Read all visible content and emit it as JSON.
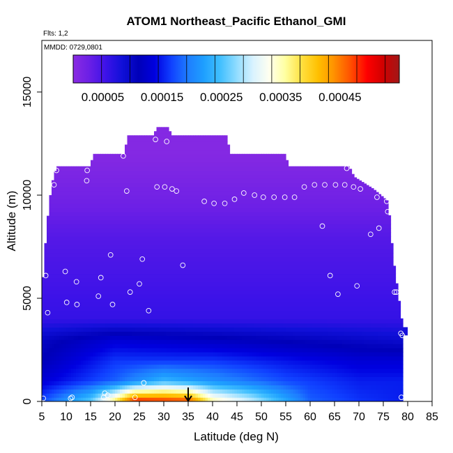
{
  "chart_data": {
    "type": "heatmap",
    "title": "ATOM1 Northeast_Pacific Ethanol_GMI",
    "flights_note": "Flts: 1,2",
    "date_note": "MMDD: 0729,0801",
    "xlabel": "Latitude (deg N)",
    "ylabel": "Altitude (m)",
    "xlim": [
      5,
      85
    ],
    "ylim": [
      0,
      17500
    ],
    "x_ticks": [
      "5",
      "10",
      "15",
      "20",
      "25",
      "30",
      "35",
      "40",
      "45",
      "50",
      "55",
      "60",
      "65",
      "70",
      "75",
      "80",
      "85"
    ],
    "y_ticks": [
      "0",
      "5000",
      "10000",
      "15000"
    ],
    "colorbar": {
      "min": 0,
      "max": 0.00055,
      "tick_labels": [
        "0.00005",
        "0.00015",
        "0.00025",
        "0.00035",
        "0.00045"
      ],
      "colors": [
        "#8a2be2",
        "#6a1fe6",
        "#3c12e8",
        "#1010d8",
        "#0000b8",
        "#0000e0",
        "#1040ff",
        "#1e7cff",
        "#1e9fff",
        "#40bfff",
        "#8fdcff",
        "#d8f2ff",
        "#fffff0",
        "#ffffa0",
        "#ffe040",
        "#ffc000",
        "#ff9000",
        "#ff5000",
        "#ff0000",
        "#d00000",
        "#a01818"
      ]
    },
    "field_rows": [
      {
        "alt": 0,
        "values_by_latitude": [
          [
            5,
            0.00017
          ],
          [
            15,
            0.00026
          ],
          [
            20,
            0.00038
          ],
          [
            24,
            0.0005
          ],
          [
            35,
            0.00048
          ],
          [
            40,
            0.00036
          ],
          [
            48,
            0.0003
          ],
          [
            60,
            0.00018
          ],
          [
            70,
            0.00016
          ],
          [
            79,
            0.00015
          ]
        ]
      },
      {
        "alt": 1000,
        "values_by_latitude": [
          [
            5,
            0.00013
          ],
          [
            20,
            0.00018
          ],
          [
            30,
            0.00024
          ],
          [
            40,
            0.00021
          ],
          [
            55,
            0.00017
          ],
          [
            70,
            0.00015
          ]
        ]
      },
      {
        "alt": 2000,
        "values_by_latitude": [
          [
            5,
            0.00011
          ],
          [
            20,
            0.00016
          ],
          [
            40,
            0.00016
          ],
          [
            70,
            0.00013
          ]
        ]
      },
      {
        "alt": 3000,
        "values_by_latitude": [
          [
            5,
            0.0001
          ],
          [
            20,
            0.00013
          ],
          [
            50,
            0.00011
          ],
          [
            79,
            9e-05
          ]
        ]
      },
      {
        "alt": 4000,
        "values_by_latitude": [
          [
            5,
            6e-05
          ],
          [
            40,
            6e-05
          ],
          [
            79,
            6e-05
          ]
        ]
      },
      {
        "alt": 6000,
        "values_by_latitude": [
          [
            5,
            5e-05
          ],
          [
            79,
            5e-05
          ]
        ]
      },
      {
        "alt": 8000,
        "values_by_latitude": [
          [
            5,
            4e-05
          ],
          [
            79,
            4e-05
          ]
        ]
      },
      {
        "alt": 10000,
        "values_by_latitude": [
          [
            5,
            2e-05
          ],
          [
            79,
            2e-05
          ]
        ]
      },
      {
        "alt": 12000,
        "values_by_latitude": [
          [
            5,
            5e-06
          ],
          [
            79,
            5e-06
          ]
        ]
      }
    ],
    "field_extent": [
      {
        "lat": 5,
        "top": 5200
      },
      {
        "lat": 6,
        "top": 8500
      },
      {
        "lat": 7,
        "top": 10500
      },
      {
        "lat": 8,
        "top": 11400
      },
      {
        "lat": 15,
        "top": 11400
      },
      {
        "lat": 15.5,
        "top": 12000
      },
      {
        "lat": 22,
        "top": 12000
      },
      {
        "lat": 22.5,
        "top": 12900
      },
      {
        "lat": 28,
        "top": 12900
      },
      {
        "lat": 28.5,
        "top": 13300
      },
      {
        "lat": 31,
        "top": 13300
      },
      {
        "lat": 31.5,
        "top": 12900
      },
      {
        "lat": 43,
        "top": 12900
      },
      {
        "lat": 43.5,
        "top": 12000
      },
      {
        "lat": 55,
        "top": 12000
      },
      {
        "lat": 55.5,
        "top": 11400
      },
      {
        "lat": 68,
        "top": 11400
      },
      {
        "lat": 69,
        "top": 10900
      },
      {
        "lat": 73,
        "top": 10300
      },
      {
        "lat": 76,
        "top": 9700
      },
      {
        "lat": 77,
        "top": 7000
      },
      {
        "lat": 78,
        "top": 5300
      },
      {
        "lat": 79,
        "top": 3600
      }
    ],
    "flight_points": [
      {
        "lat": 5.3,
        "alt": 150
      },
      {
        "lat": 5.8,
        "alt": 6100
      },
      {
        "lat": 6.2,
        "alt": 4300
      },
      {
        "lat": 7.5,
        "alt": 10500
      },
      {
        "lat": 8.0,
        "alt": 11200
      },
      {
        "lat": 9.8,
        "alt": 6300
      },
      {
        "lat": 10.1,
        "alt": 4800
      },
      {
        "lat": 10.9,
        "alt": 150
      },
      {
        "lat": 11.2,
        "alt": 200
      },
      {
        "lat": 12.1,
        "alt": 5800
      },
      {
        "lat": 12.2,
        "alt": 4700
      },
      {
        "lat": 14.3,
        "alt": 11200
      },
      {
        "lat": 14.2,
        "alt": 10700
      },
      {
        "lat": 16.6,
        "alt": 5100
      },
      {
        "lat": 17.1,
        "alt": 6000
      },
      {
        "lat": 17.7,
        "alt": 200
      },
      {
        "lat": 17.9,
        "alt": 400
      },
      {
        "lat": 18.5,
        "alt": 300
      },
      {
        "lat": 19.1,
        "alt": 7100
      },
      {
        "lat": 19.5,
        "alt": 4700
      },
      {
        "lat": 21.7,
        "alt": 11900
      },
      {
        "lat": 22.4,
        "alt": 10200
      },
      {
        "lat": 23.1,
        "alt": 5300
      },
      {
        "lat": 24.1,
        "alt": 200
      },
      {
        "lat": 25.0,
        "alt": 5700
      },
      {
        "lat": 25.6,
        "alt": 6900
      },
      {
        "lat": 25.9,
        "alt": 900
      },
      {
        "lat": 26.9,
        "alt": 4400
      },
      {
        "lat": 28.3,
        "alt": 12700
      },
      {
        "lat": 28.6,
        "alt": 10400
      },
      {
        "lat": 30.2,
        "alt": 10400
      },
      {
        "lat": 30.6,
        "alt": 12600
      },
      {
        "lat": 31.7,
        "alt": 10300
      },
      {
        "lat": 32.6,
        "alt": 10200
      },
      {
        "lat": 33.9,
        "alt": 6600
      },
      {
        "lat": 38.3,
        "alt": 9700
      },
      {
        "lat": 40.3,
        "alt": 9600
      },
      {
        "lat": 42.5,
        "alt": 9600
      },
      {
        "lat": 44.5,
        "alt": 9800
      },
      {
        "lat": 46.4,
        "alt": 10100
      },
      {
        "lat": 48.6,
        "alt": 10000
      },
      {
        "lat": 50.4,
        "alt": 9900
      },
      {
        "lat": 52.6,
        "alt": 9900
      },
      {
        "lat": 54.8,
        "alt": 9900
      },
      {
        "lat": 56.8,
        "alt": 9900
      },
      {
        "lat": 58.8,
        "alt": 10400
      },
      {
        "lat": 60.9,
        "alt": 10500
      },
      {
        "lat": 62.5,
        "alt": 8500
      },
      {
        "lat": 63.0,
        "alt": 10500
      },
      {
        "lat": 64.1,
        "alt": 6100
      },
      {
        "lat": 65.2,
        "alt": 10500
      },
      {
        "lat": 65.7,
        "alt": 5200
      },
      {
        "lat": 67.1,
        "alt": 10500
      },
      {
        "lat": 67.5,
        "alt": 11300
      },
      {
        "lat": 68.9,
        "alt": 10400
      },
      {
        "lat": 69.6,
        "alt": 5600
      },
      {
        "lat": 70.3,
        "alt": 10300
      },
      {
        "lat": 72.4,
        "alt": 8100
      },
      {
        "lat": 73.7,
        "alt": 9900
      },
      {
        "lat": 74.1,
        "alt": 8400
      },
      {
        "lat": 75.7,
        "alt": 9700
      },
      {
        "lat": 75.9,
        "alt": 9200
      },
      {
        "lat": 77.3,
        "alt": 5300
      },
      {
        "lat": 77.7,
        "alt": 5300
      },
      {
        "lat": 78.6,
        "alt": 3300
      },
      {
        "lat": 78.9,
        "alt": 3200
      },
      {
        "lat": 78.7,
        "alt": 200
      }
    ],
    "arrow_marker": {
      "lat": 35,
      "alt": 0
    }
  }
}
